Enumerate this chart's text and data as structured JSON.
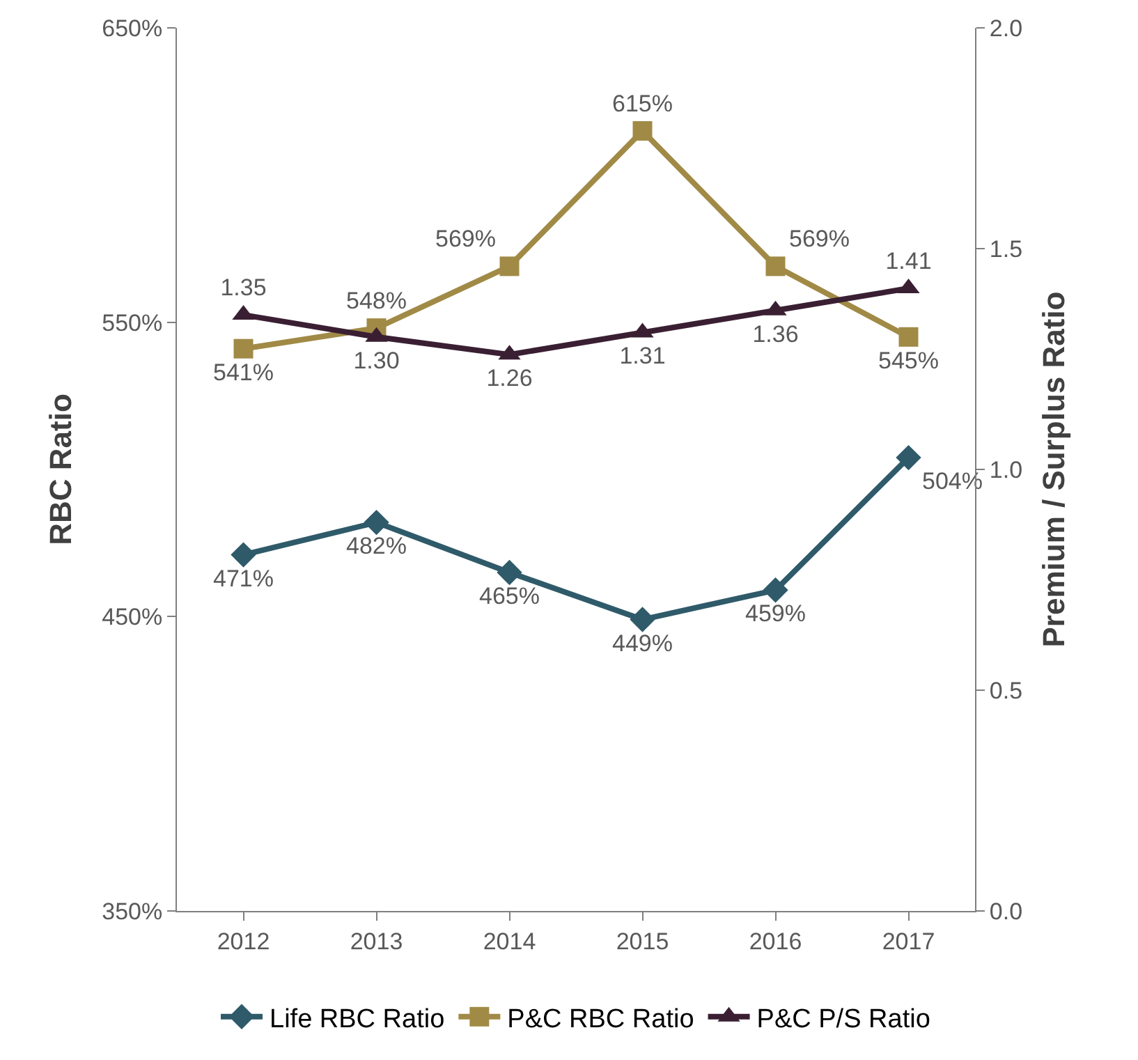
{
  "chart_data": {
    "type": "line",
    "ylabel": "RBC Ratio",
    "y2label": "Premium / Surplus Ratio",
    "categories": [
      "2012",
      "2013",
      "2014",
      "2015",
      "2016",
      "2017"
    ],
    "ylim": [
      350,
      650
    ],
    "yticks": [
      {
        "value": 350,
        "label": "350%"
      },
      {
        "value": 450,
        "label": "450%"
      },
      {
        "value": 550,
        "label": "550%"
      },
      {
        "value": 650,
        "label": "650%"
      }
    ],
    "y2lim": [
      0,
      2
    ],
    "y2ticks": [
      {
        "value": 0,
        "label": "0.0"
      },
      {
        "value": 0.5,
        "label": "0.5"
      },
      {
        "value": 1,
        "label": "1.0"
      },
      {
        "value": 1.5,
        "label": "1.5"
      },
      {
        "value": 2,
        "label": "2.0"
      }
    ],
    "legend": "bottom",
    "line_style": "solid",
    "series": [
      {
        "name": "Life RBC Ratio",
        "color": "#2f5a6a",
        "marker": "diamond",
        "values": [
          471,
          482,
          465,
          449,
          459,
          504
        ],
        "value_labels": [
          "471%",
          "482%",
          "465%",
          "449%",
          "459%",
          "504%"
        ]
      },
      {
        "name": "P&C RBC Ratio",
        "color": "#a08a46",
        "marker": "square",
        "values": [
          541,
          548,
          569,
          615,
          569,
          545
        ],
        "value_labels": [
          "541%",
          "548%",
          "569%",
          "615%",
          "569%",
          "545%"
        ]
      },
      {
        "name": "P&C P/S Ratio",
        "color": "#3a1f33",
        "marker": "triangle",
        "axis": "y2",
        "values": [
          1.35,
          1.3,
          1.26,
          1.31,
          1.36,
          1.41
        ],
        "value_labels": [
          "1.35",
          "1.30",
          "1.26",
          "1.31",
          "1.36",
          "1.41"
        ]
      }
    ]
  }
}
